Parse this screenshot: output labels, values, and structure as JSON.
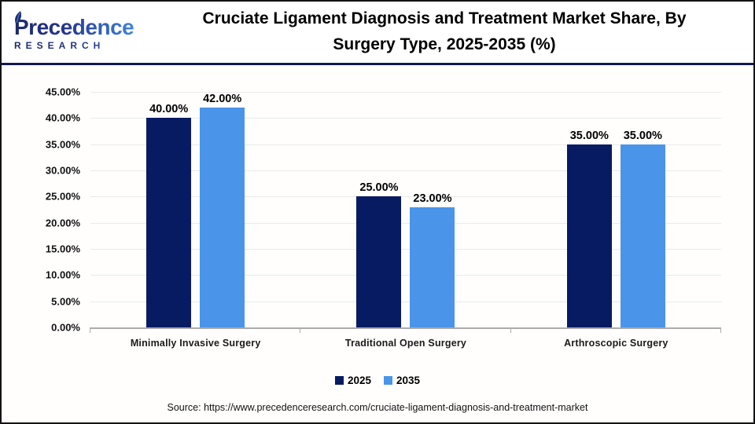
{
  "header": {
    "logo": {
      "brand": "Precedence",
      "subtitle": "RESEARCH",
      "brand_color_dark": "#1d2968",
      "brand_color_light": "#3f83db"
    }
  },
  "chart_data": {
    "type": "bar",
    "title": "Cruciate Ligament Diagnosis and Treatment Market Share, By Surgery Type, 2025-2035 (%)",
    "categories": [
      "Minimally Invasive Surgery",
      "Traditional Open Surgery",
      "Arthroscopic Surgery"
    ],
    "series": [
      {
        "name": "2025",
        "color": "#071b63",
        "values": [
          40,
          25,
          35
        ],
        "labels": [
          "40.00%",
          "25.00%",
          "35.00%"
        ]
      },
      {
        "name": "2035",
        "color": "#4a94ea",
        "values": [
          42,
          23,
          35
        ],
        "labels": [
          "42.00%",
          "23.00%",
          "35.00%"
        ]
      }
    ],
    "ylim": [
      0,
      45
    ],
    "ytick_step": 5,
    "yticks": [
      "0.00%",
      "5.00%",
      "10.00%",
      "15.00%",
      "20.00%",
      "25.00%",
      "30.00%",
      "35.00%",
      "40.00%",
      "45.00%"
    ],
    "grid": true,
    "gridline_color": "#eaeaea",
    "axis_color": "#ababab",
    "legend_position": "bottom",
    "xlabel": "",
    "ylabel": ""
  },
  "footer": {
    "source": "Source: https://www.precedenceresearch.com/cruciate-ligament-diagnosis-and-treatment-market"
  }
}
